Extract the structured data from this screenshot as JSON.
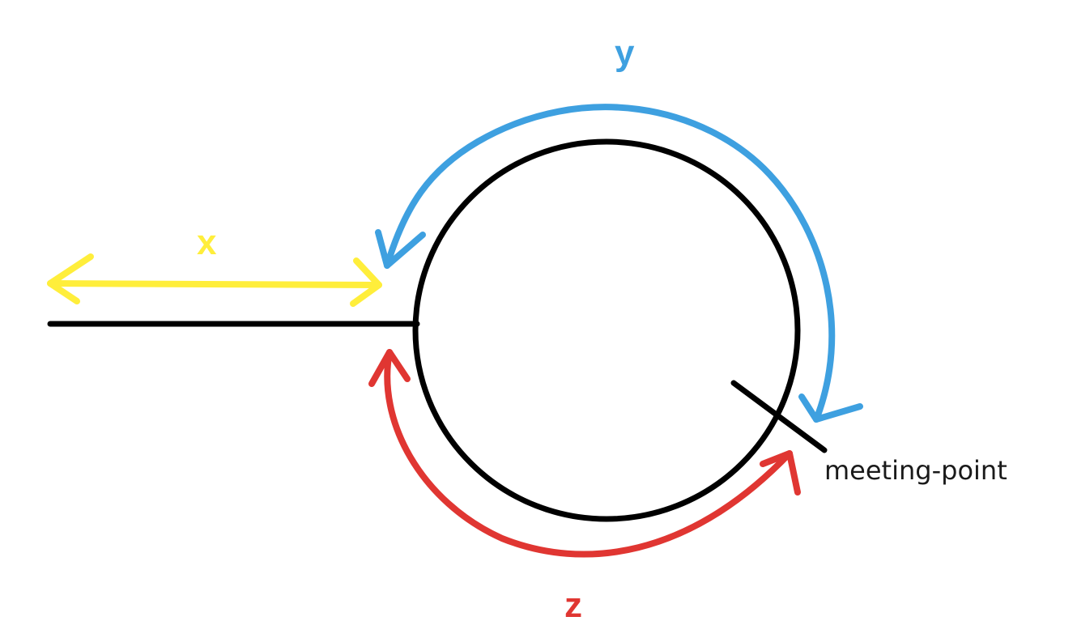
{
  "labels": {
    "x": "x",
    "y": "y",
    "z": "z",
    "meeting_point": "meeting-point"
  },
  "colors": {
    "x": "#FFEE3B",
    "y": "#3EA0E0",
    "z": "#E03632",
    "line": "#000000",
    "text": "#1a1a1a"
  }
}
